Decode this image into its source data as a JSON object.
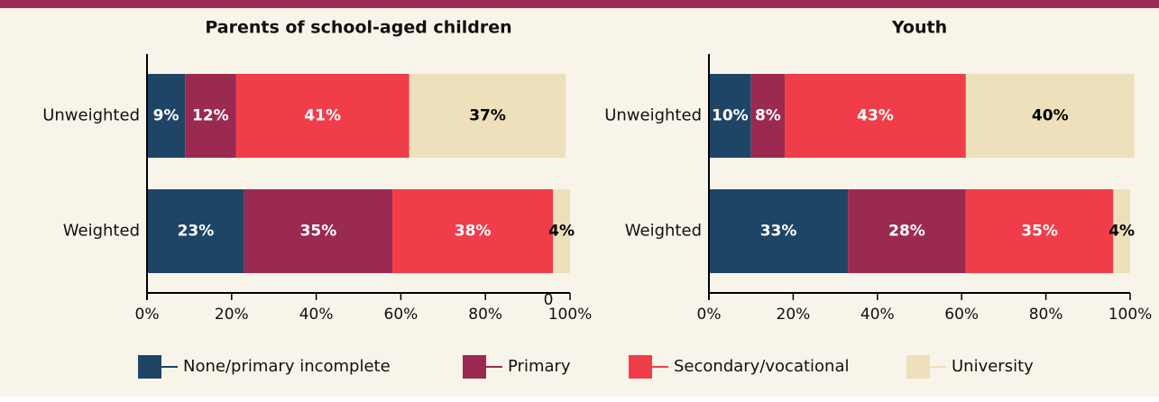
{
  "chart_data": [
    {
      "type": "bar",
      "orientation": "horizontal",
      "title": "Parents of school-aged children",
      "categories": [
        "Unweighted",
        "Weighted"
      ],
      "series": [
        {
          "name": "None/primary incomplete",
          "color": "#1f4566",
          "label_color": "#ffffff",
          "values": [
            9,
            23
          ],
          "value_labels": [
            "9%",
            "23%"
          ]
        },
        {
          "name": "Primary",
          "color": "#9b2a52",
          "label_color": "#ffffff",
          "values": [
            12,
            35
          ],
          "value_labels": [
            "12%",
            "35%"
          ]
        },
        {
          "name": "Secondary/vocational",
          "color": "#ef3e4a",
          "label_color": "#ffffff",
          "values": [
            41,
            38
          ],
          "value_labels": [
            "41%",
            "38%"
          ]
        },
        {
          "name": "University",
          "color": "#ede0bb",
          "label_color": "#000000",
          "values": [
            37,
            4
          ],
          "value_labels": [
            "37%",
            "4%"
          ]
        }
      ],
      "xlim": [
        0,
        100
      ],
      "xticks": [
        {
          "value": 0,
          "label": "0%"
        },
        {
          "value": 20,
          "label": "20%"
        },
        {
          "value": 40,
          "label": "40%"
        },
        {
          "value": 60,
          "label": "60%"
        },
        {
          "value": 80,
          "label": "80%"
        },
        {
          "value": 100,
          "label": "100%"
        }
      ],
      "annotation": "0"
    },
    {
      "type": "bar",
      "orientation": "horizontal",
      "title": "Youth",
      "categories": [
        "Unweighted",
        "Weighted"
      ],
      "series": [
        {
          "color": "#1f4566",
          "label_color": "#ffffff",
          "values": [
            10,
            33
          ],
          "value_labels": [
            "10%",
            "33%"
          ]
        },
        {
          "color": "#9b2a52",
          "label_color": "#ffffff",
          "values": [
            8,
            28
          ],
          "value_labels": [
            "8%",
            "28%"
          ]
        },
        {
          "color": "#ef3e4a",
          "label_color": "#ffffff",
          "values": [
            43,
            35
          ],
          "value_labels": [
            "43%",
            "35%"
          ]
        },
        {
          "color": "#ede0bb",
          "label_color": "#000000",
          "values": [
            40,
            4
          ],
          "value_labels": [
            "40%",
            "4%"
          ]
        }
      ],
      "xlim": [
        0,
        100
      ],
      "xticks": [
        {
          "value": 0,
          "label": "0%"
        },
        {
          "value": 20,
          "label": "20%"
        },
        {
          "value": 40,
          "label": "40%"
        },
        {
          "value": 60,
          "label": "60%"
        },
        {
          "value": 80,
          "label": "80%"
        },
        {
          "value": 100,
          "label": "100%"
        }
      ]
    }
  ]
}
